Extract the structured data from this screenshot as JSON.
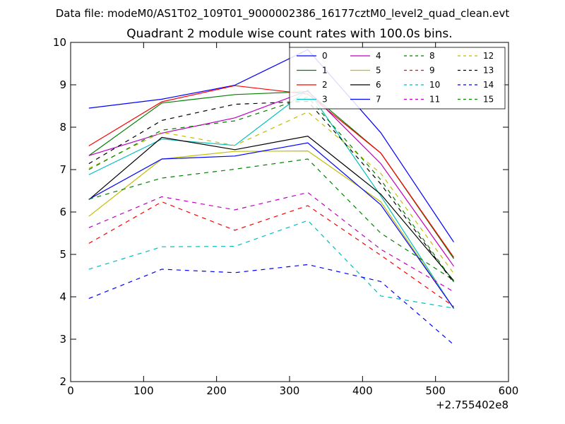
{
  "suptitle": "Data file: modeM0/AS1T02_109T01_9000002386_16177cztM0_level2_quad_clean.evt",
  "chart_data": {
    "type": "line",
    "title": "Quadrant 2 module wise count rates with 100.0s bins.",
    "xlabel": "",
    "ylabel": "",
    "x_offset_label": "+2.755402e8",
    "xlim": [
      0,
      600
    ],
    "ylim": [
      2,
      10
    ],
    "x_ticks": [
      0,
      100,
      200,
      300,
      400,
      500,
      600
    ],
    "y_ticks": [
      2,
      3,
      4,
      5,
      6,
      7,
      8,
      9,
      10
    ],
    "grid": false,
    "legend_position": "top-right",
    "legend_columns": 4,
    "x": [
      25,
      125,
      225,
      325,
      425,
      525
    ],
    "series": [
      {
        "name": "0",
        "color": "#0000ff",
        "dash": "solid",
        "values": [
          8.45,
          8.66,
          8.99,
          9.83,
          7.87,
          5.29
        ]
      },
      {
        "name": "1",
        "color": "#008000",
        "dash": "solid",
        "values": [
          7.33,
          8.57,
          8.77,
          8.84,
          7.39,
          4.9
        ]
      },
      {
        "name": "2",
        "color": "#ff0000",
        "dash": "solid",
        "values": [
          7.56,
          8.6,
          8.98,
          8.78,
          7.39,
          4.93
        ]
      },
      {
        "name": "3",
        "color": "#00bfbf",
        "dash": "solid",
        "values": [
          6.88,
          7.72,
          7.57,
          8.88,
          6.38,
          3.72
        ]
      },
      {
        "name": "4",
        "color": "#bf00bf",
        "dash": "solid",
        "values": [
          7.33,
          7.86,
          8.22,
          8.86,
          7.14,
          4.72
        ]
      },
      {
        "name": "5",
        "color": "#bfbf00",
        "dash": "solid",
        "values": [
          5.9,
          7.25,
          7.43,
          7.44,
          6.24,
          3.73
        ]
      },
      {
        "name": "6",
        "color": "#000000",
        "dash": "solid",
        "values": [
          6.29,
          7.76,
          7.47,
          7.79,
          6.42,
          4.38
        ]
      },
      {
        "name": "7",
        "color": "#0000ff",
        "dash": "solid",
        "values": [
          6.3,
          7.25,
          7.32,
          7.63,
          6.17,
          3.73
        ]
      },
      {
        "name": "8",
        "color": "#008000",
        "dash": "dashed",
        "values": [
          6.3,
          6.8,
          7.01,
          7.25,
          5.5,
          4.39
        ]
      },
      {
        "name": "9",
        "color": "#ff0000",
        "dash": "dashed",
        "values": [
          5.26,
          6.24,
          5.57,
          6.15,
          4.98,
          3.77
        ]
      },
      {
        "name": "10",
        "color": "#00bfbf",
        "dash": "dashed",
        "values": [
          4.65,
          5.18,
          5.19,
          5.8,
          4.02,
          3.73
        ]
      },
      {
        "name": "11",
        "color": "#bf00bf",
        "dash": "dashed",
        "values": [
          5.63,
          6.36,
          6.05,
          6.46,
          5.12,
          4.12
        ]
      },
      {
        "name": "12",
        "color": "#bfbf00",
        "dash": "dashed",
        "values": [
          7.03,
          7.88,
          7.57,
          8.36,
          6.91,
          4.55
        ]
      },
      {
        "name": "13",
        "color": "#000000",
        "dash": "dashed",
        "values": [
          7.14,
          8.16,
          8.54,
          8.61,
          6.66,
          4.33
        ]
      },
      {
        "name": "14",
        "color": "#0000ff",
        "dash": "dashed",
        "values": [
          3.96,
          4.65,
          4.57,
          4.76,
          4.36,
          2.87
        ]
      },
      {
        "name": "15",
        "color": "#008000",
        "dash": "dashed",
        "values": [
          7.0,
          7.93,
          8.15,
          8.71,
          6.76,
          4.35
        ]
      }
    ]
  }
}
